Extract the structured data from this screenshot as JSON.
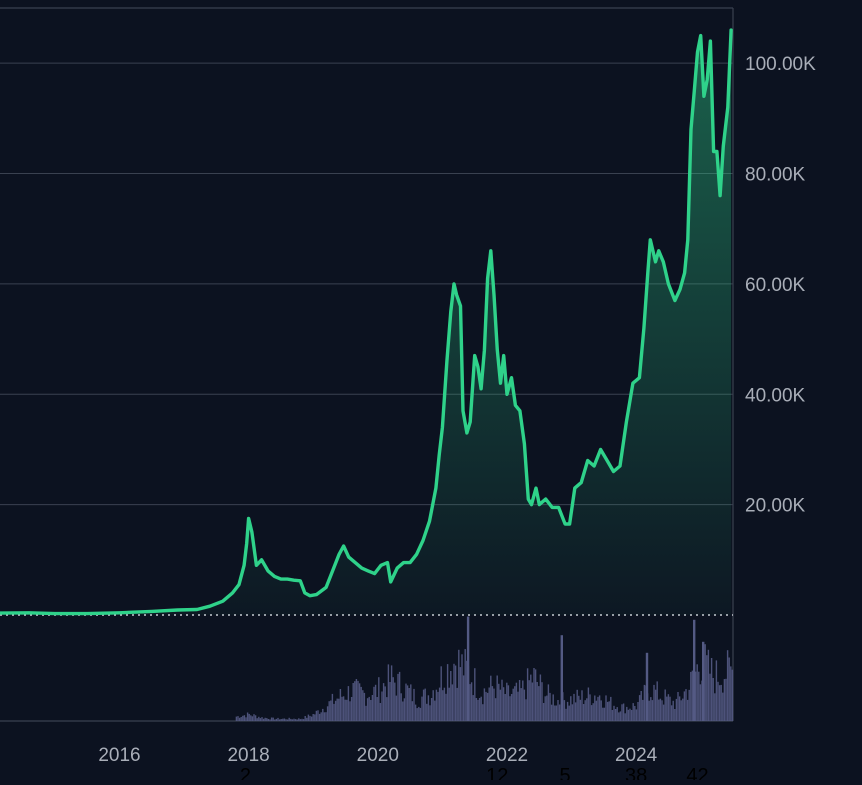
{
  "theme": {
    "background": "#0c1220",
    "line_color": "#2fd28a",
    "grid_color": "#3a4150",
    "volume_color": "#545a84",
    "axis_text_color": "#a9aeb8",
    "baseline_color": "#c8ccd4"
  },
  "chart_data": {
    "type": "line",
    "title": "",
    "xlabel": "",
    "ylabel": "",
    "xlim": [
      2014.15,
      2025.5
    ],
    "ylim": [
      0,
      110000
    ],
    "grid": true,
    "y_axis_position": "right",
    "x_ticks": [
      {
        "value": 2016,
        "label": "2016"
      },
      {
        "value": 2018,
        "label": "2018"
      },
      {
        "value": 2020,
        "label": "2020"
      },
      {
        "value": 2022,
        "label": "2022"
      },
      {
        "value": 2024,
        "label": "2024"
      }
    ],
    "y_ticks": [
      {
        "value": 20000,
        "label": "20.00K"
      },
      {
        "value": 40000,
        "label": "40.00K"
      },
      {
        "value": 60000,
        "label": "60.00K"
      },
      {
        "value": 80000,
        "label": "80.00K"
      },
      {
        "value": 100000,
        "label": "100.00K"
      }
    ],
    "series": [
      {
        "x": [
          2014.15,
          2014.6,
          2015.0,
          2015.5,
          2016.0,
          2016.5,
          2016.9,
          2017.2,
          2017.4,
          2017.6,
          2017.75,
          2017.85,
          2017.93,
          2017.97,
          2018.0,
          2018.05,
          2018.12,
          2018.2,
          2018.3,
          2018.4,
          2018.5,
          2018.6,
          2018.7,
          2018.8,
          2018.87,
          2018.95,
          2019.05,
          2019.2,
          2019.3,
          2019.4,
          2019.47,
          2019.55,
          2019.65,
          2019.75,
          2019.85,
          2019.95,
          2020.05,
          2020.15,
          2020.2,
          2020.3,
          2020.4,
          2020.5,
          2020.6,
          2020.7,
          2020.8,
          2020.9,
          2020.95,
          2021.0,
          2021.07,
          2021.13,
          2021.18,
          2021.22,
          2021.28,
          2021.32,
          2021.38,
          2021.43,
          2021.5,
          2021.55,
          2021.6,
          2021.65,
          2021.7,
          2021.75,
          2021.8,
          2021.85,
          2021.9,
          2021.95,
          2022.0,
          2022.07,
          2022.13,
          2022.2,
          2022.27,
          2022.33,
          2022.38,
          2022.45,
          2022.5,
          2022.6,
          2022.7,
          2022.8,
          2022.9,
          2022.97,
          2023.05,
          2023.15,
          2023.25,
          2023.35,
          2023.45,
          2023.55,
          2023.65,
          2023.75,
          2023.85,
          2023.95,
          2024.05,
          2024.12,
          2024.18,
          2024.22,
          2024.3,
          2024.35,
          2024.42,
          2024.5,
          2024.6,
          2024.68,
          2024.75,
          2024.8,
          2024.85,
          2024.9,
          2024.95,
          2025.0,
          2025.05,
          2025.1,
          2025.15,
          2025.2,
          2025.25,
          2025.3,
          2025.35,
          2025.42,
          2025.47
        ],
        "y": [
          350,
          400,
          250,
          250,
          400,
          650,
          900,
          1000,
          1600,
          2500,
          4000,
          5500,
          9000,
          13000,
          17500,
          15000,
          9000,
          10000,
          8000,
          7000,
          6500,
          6500,
          6300,
          6200,
          4000,
          3500,
          3700,
          5000,
          8000,
          11000,
          12500,
          10500,
          9500,
          8500,
          8000,
          7500,
          9000,
          9500,
          6000,
          8500,
          9500,
          9500,
          11000,
          13500,
          17000,
          23000,
          29000,
          34000,
          46000,
          55000,
          60000,
          58000,
          56000,
          37000,
          33000,
          35000,
          47000,
          45000,
          41000,
          48000,
          61000,
          66000,
          58000,
          48000,
          42000,
          47000,
          40000,
          43000,
          38000,
          37000,
          31000,
          21000,
          20000,
          23000,
          20000,
          21000,
          19500,
          19500,
          16500,
          16500,
          23000,
          24000,
          28000,
          27000,
          30000,
          28000,
          26000,
          27000,
          35000,
          42000,
          43000,
          52000,
          62000,
          68000,
          64000,
          66000,
          64000,
          60000,
          57000,
          59000,
          62000,
          68000,
          88000,
          95000,
          102000,
          105000,
          94000,
          97000,
          104000,
          84000,
          84000,
          76000,
          85000,
          92000,
          106000
        ]
      }
    ],
    "volume": {
      "x": [
        2017.8,
        2018.0,
        2018.2,
        2018.4,
        2018.6,
        2018.8,
        2019.0,
        2019.2,
        2019.4,
        2019.6,
        2019.8,
        2020.0,
        2020.2,
        2020.4,
        2020.6,
        2020.8,
        2021.0,
        2021.2,
        2021.4,
        2021.6,
        2021.8,
        2022.0,
        2022.2,
        2022.4,
        2022.6,
        2022.8,
        2023.0,
        2023.2,
        2023.4,
        2023.6,
        2023.8,
        2024.0,
        2024.2,
        2024.4,
        2024.6,
        2024.8,
        2025.0,
        2025.2,
        2025.4
      ],
      "values": [
        4,
        6,
        3,
        2,
        2,
        2,
        6,
        14,
        22,
        28,
        24,
        28,
        38,
        30,
        20,
        24,
        42,
        55,
        44,
        26,
        32,
        24,
        26,
        40,
        24,
        18,
        20,
        22,
        24,
        16,
        12,
        14,
        30,
        22,
        16,
        30,
        55,
        40,
        45
      ],
      "max": 100
    },
    "volume_spikes": [
      {
        "x": 2021.38,
        "value": 95
      },
      {
        "x": 2022.83,
        "value": 78
      },
      {
        "x": 2024.15,
        "value": 62
      },
      {
        "x": 2024.88,
        "value": 92
      },
      {
        "x": 2025.02,
        "value": 72
      }
    ],
    "bottom_labels": [
      {
        "x": 2017.95,
        "label": "2"
      },
      {
        "x": 2021.85,
        "label": "12"
      },
      {
        "x": 2022.9,
        "label": "5"
      },
      {
        "x": 2024.0,
        "label": "38"
      },
      {
        "x": 2024.95,
        "label": "42"
      }
    ]
  }
}
